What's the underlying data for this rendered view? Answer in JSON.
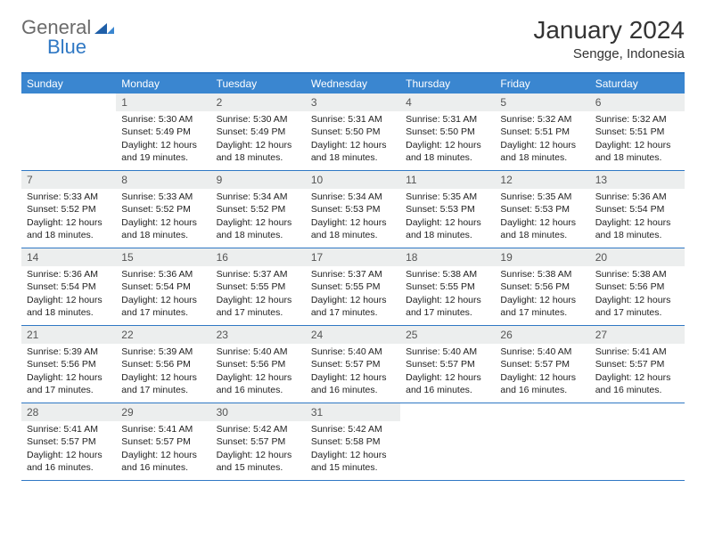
{
  "logo": {
    "text1": "General",
    "text2": "Blue"
  },
  "header": {
    "title": "January 2024",
    "location": "Sengge, Indonesia"
  },
  "colors": {
    "header_bar": "#3a86d0",
    "rule": "#2f78c4",
    "daynum_bg": "#eceeee",
    "logo_gray": "#6b6b6b",
    "logo_blue": "#2f78c4"
  },
  "weekdays": [
    "Sunday",
    "Monday",
    "Tuesday",
    "Wednesday",
    "Thursday",
    "Friday",
    "Saturday"
  ],
  "weeks": [
    [
      {
        "empty": true
      },
      {
        "day": "1",
        "sunrise": "Sunrise: 5:30 AM",
        "sunset": "Sunset: 5:49 PM",
        "daylight": "Daylight: 12 hours and 19 minutes."
      },
      {
        "day": "2",
        "sunrise": "Sunrise: 5:30 AM",
        "sunset": "Sunset: 5:49 PM",
        "daylight": "Daylight: 12 hours and 18 minutes."
      },
      {
        "day": "3",
        "sunrise": "Sunrise: 5:31 AM",
        "sunset": "Sunset: 5:50 PM",
        "daylight": "Daylight: 12 hours and 18 minutes."
      },
      {
        "day": "4",
        "sunrise": "Sunrise: 5:31 AM",
        "sunset": "Sunset: 5:50 PM",
        "daylight": "Daylight: 12 hours and 18 minutes."
      },
      {
        "day": "5",
        "sunrise": "Sunrise: 5:32 AM",
        "sunset": "Sunset: 5:51 PM",
        "daylight": "Daylight: 12 hours and 18 minutes."
      },
      {
        "day": "6",
        "sunrise": "Sunrise: 5:32 AM",
        "sunset": "Sunset: 5:51 PM",
        "daylight": "Daylight: 12 hours and 18 minutes."
      }
    ],
    [
      {
        "day": "7",
        "sunrise": "Sunrise: 5:33 AM",
        "sunset": "Sunset: 5:52 PM",
        "daylight": "Daylight: 12 hours and 18 minutes."
      },
      {
        "day": "8",
        "sunrise": "Sunrise: 5:33 AM",
        "sunset": "Sunset: 5:52 PM",
        "daylight": "Daylight: 12 hours and 18 minutes."
      },
      {
        "day": "9",
        "sunrise": "Sunrise: 5:34 AM",
        "sunset": "Sunset: 5:52 PM",
        "daylight": "Daylight: 12 hours and 18 minutes."
      },
      {
        "day": "10",
        "sunrise": "Sunrise: 5:34 AM",
        "sunset": "Sunset: 5:53 PM",
        "daylight": "Daylight: 12 hours and 18 minutes."
      },
      {
        "day": "11",
        "sunrise": "Sunrise: 5:35 AM",
        "sunset": "Sunset: 5:53 PM",
        "daylight": "Daylight: 12 hours and 18 minutes."
      },
      {
        "day": "12",
        "sunrise": "Sunrise: 5:35 AM",
        "sunset": "Sunset: 5:53 PM",
        "daylight": "Daylight: 12 hours and 18 minutes."
      },
      {
        "day": "13",
        "sunrise": "Sunrise: 5:36 AM",
        "sunset": "Sunset: 5:54 PM",
        "daylight": "Daylight: 12 hours and 18 minutes."
      }
    ],
    [
      {
        "day": "14",
        "sunrise": "Sunrise: 5:36 AM",
        "sunset": "Sunset: 5:54 PM",
        "daylight": "Daylight: 12 hours and 18 minutes."
      },
      {
        "day": "15",
        "sunrise": "Sunrise: 5:36 AM",
        "sunset": "Sunset: 5:54 PM",
        "daylight": "Daylight: 12 hours and 17 minutes."
      },
      {
        "day": "16",
        "sunrise": "Sunrise: 5:37 AM",
        "sunset": "Sunset: 5:55 PM",
        "daylight": "Daylight: 12 hours and 17 minutes."
      },
      {
        "day": "17",
        "sunrise": "Sunrise: 5:37 AM",
        "sunset": "Sunset: 5:55 PM",
        "daylight": "Daylight: 12 hours and 17 minutes."
      },
      {
        "day": "18",
        "sunrise": "Sunrise: 5:38 AM",
        "sunset": "Sunset: 5:55 PM",
        "daylight": "Daylight: 12 hours and 17 minutes."
      },
      {
        "day": "19",
        "sunrise": "Sunrise: 5:38 AM",
        "sunset": "Sunset: 5:56 PM",
        "daylight": "Daylight: 12 hours and 17 minutes."
      },
      {
        "day": "20",
        "sunrise": "Sunrise: 5:38 AM",
        "sunset": "Sunset: 5:56 PM",
        "daylight": "Daylight: 12 hours and 17 minutes."
      }
    ],
    [
      {
        "day": "21",
        "sunrise": "Sunrise: 5:39 AM",
        "sunset": "Sunset: 5:56 PM",
        "daylight": "Daylight: 12 hours and 17 minutes."
      },
      {
        "day": "22",
        "sunrise": "Sunrise: 5:39 AM",
        "sunset": "Sunset: 5:56 PM",
        "daylight": "Daylight: 12 hours and 17 minutes."
      },
      {
        "day": "23",
        "sunrise": "Sunrise: 5:40 AM",
        "sunset": "Sunset: 5:56 PM",
        "daylight": "Daylight: 12 hours and 16 minutes."
      },
      {
        "day": "24",
        "sunrise": "Sunrise: 5:40 AM",
        "sunset": "Sunset: 5:57 PM",
        "daylight": "Daylight: 12 hours and 16 minutes."
      },
      {
        "day": "25",
        "sunrise": "Sunrise: 5:40 AM",
        "sunset": "Sunset: 5:57 PM",
        "daylight": "Daylight: 12 hours and 16 minutes."
      },
      {
        "day": "26",
        "sunrise": "Sunrise: 5:40 AM",
        "sunset": "Sunset: 5:57 PM",
        "daylight": "Daylight: 12 hours and 16 minutes."
      },
      {
        "day": "27",
        "sunrise": "Sunrise: 5:41 AM",
        "sunset": "Sunset: 5:57 PM",
        "daylight": "Daylight: 12 hours and 16 minutes."
      }
    ],
    [
      {
        "day": "28",
        "sunrise": "Sunrise: 5:41 AM",
        "sunset": "Sunset: 5:57 PM",
        "daylight": "Daylight: 12 hours and 16 minutes."
      },
      {
        "day": "29",
        "sunrise": "Sunrise: 5:41 AM",
        "sunset": "Sunset: 5:57 PM",
        "daylight": "Daylight: 12 hours and 16 minutes."
      },
      {
        "day": "30",
        "sunrise": "Sunrise: 5:42 AM",
        "sunset": "Sunset: 5:57 PM",
        "daylight": "Daylight: 12 hours and 15 minutes."
      },
      {
        "day": "31",
        "sunrise": "Sunrise: 5:42 AM",
        "sunset": "Sunset: 5:58 PM",
        "daylight": "Daylight: 12 hours and 15 minutes."
      },
      {
        "empty": true
      },
      {
        "empty": true
      },
      {
        "empty": true
      }
    ]
  ]
}
